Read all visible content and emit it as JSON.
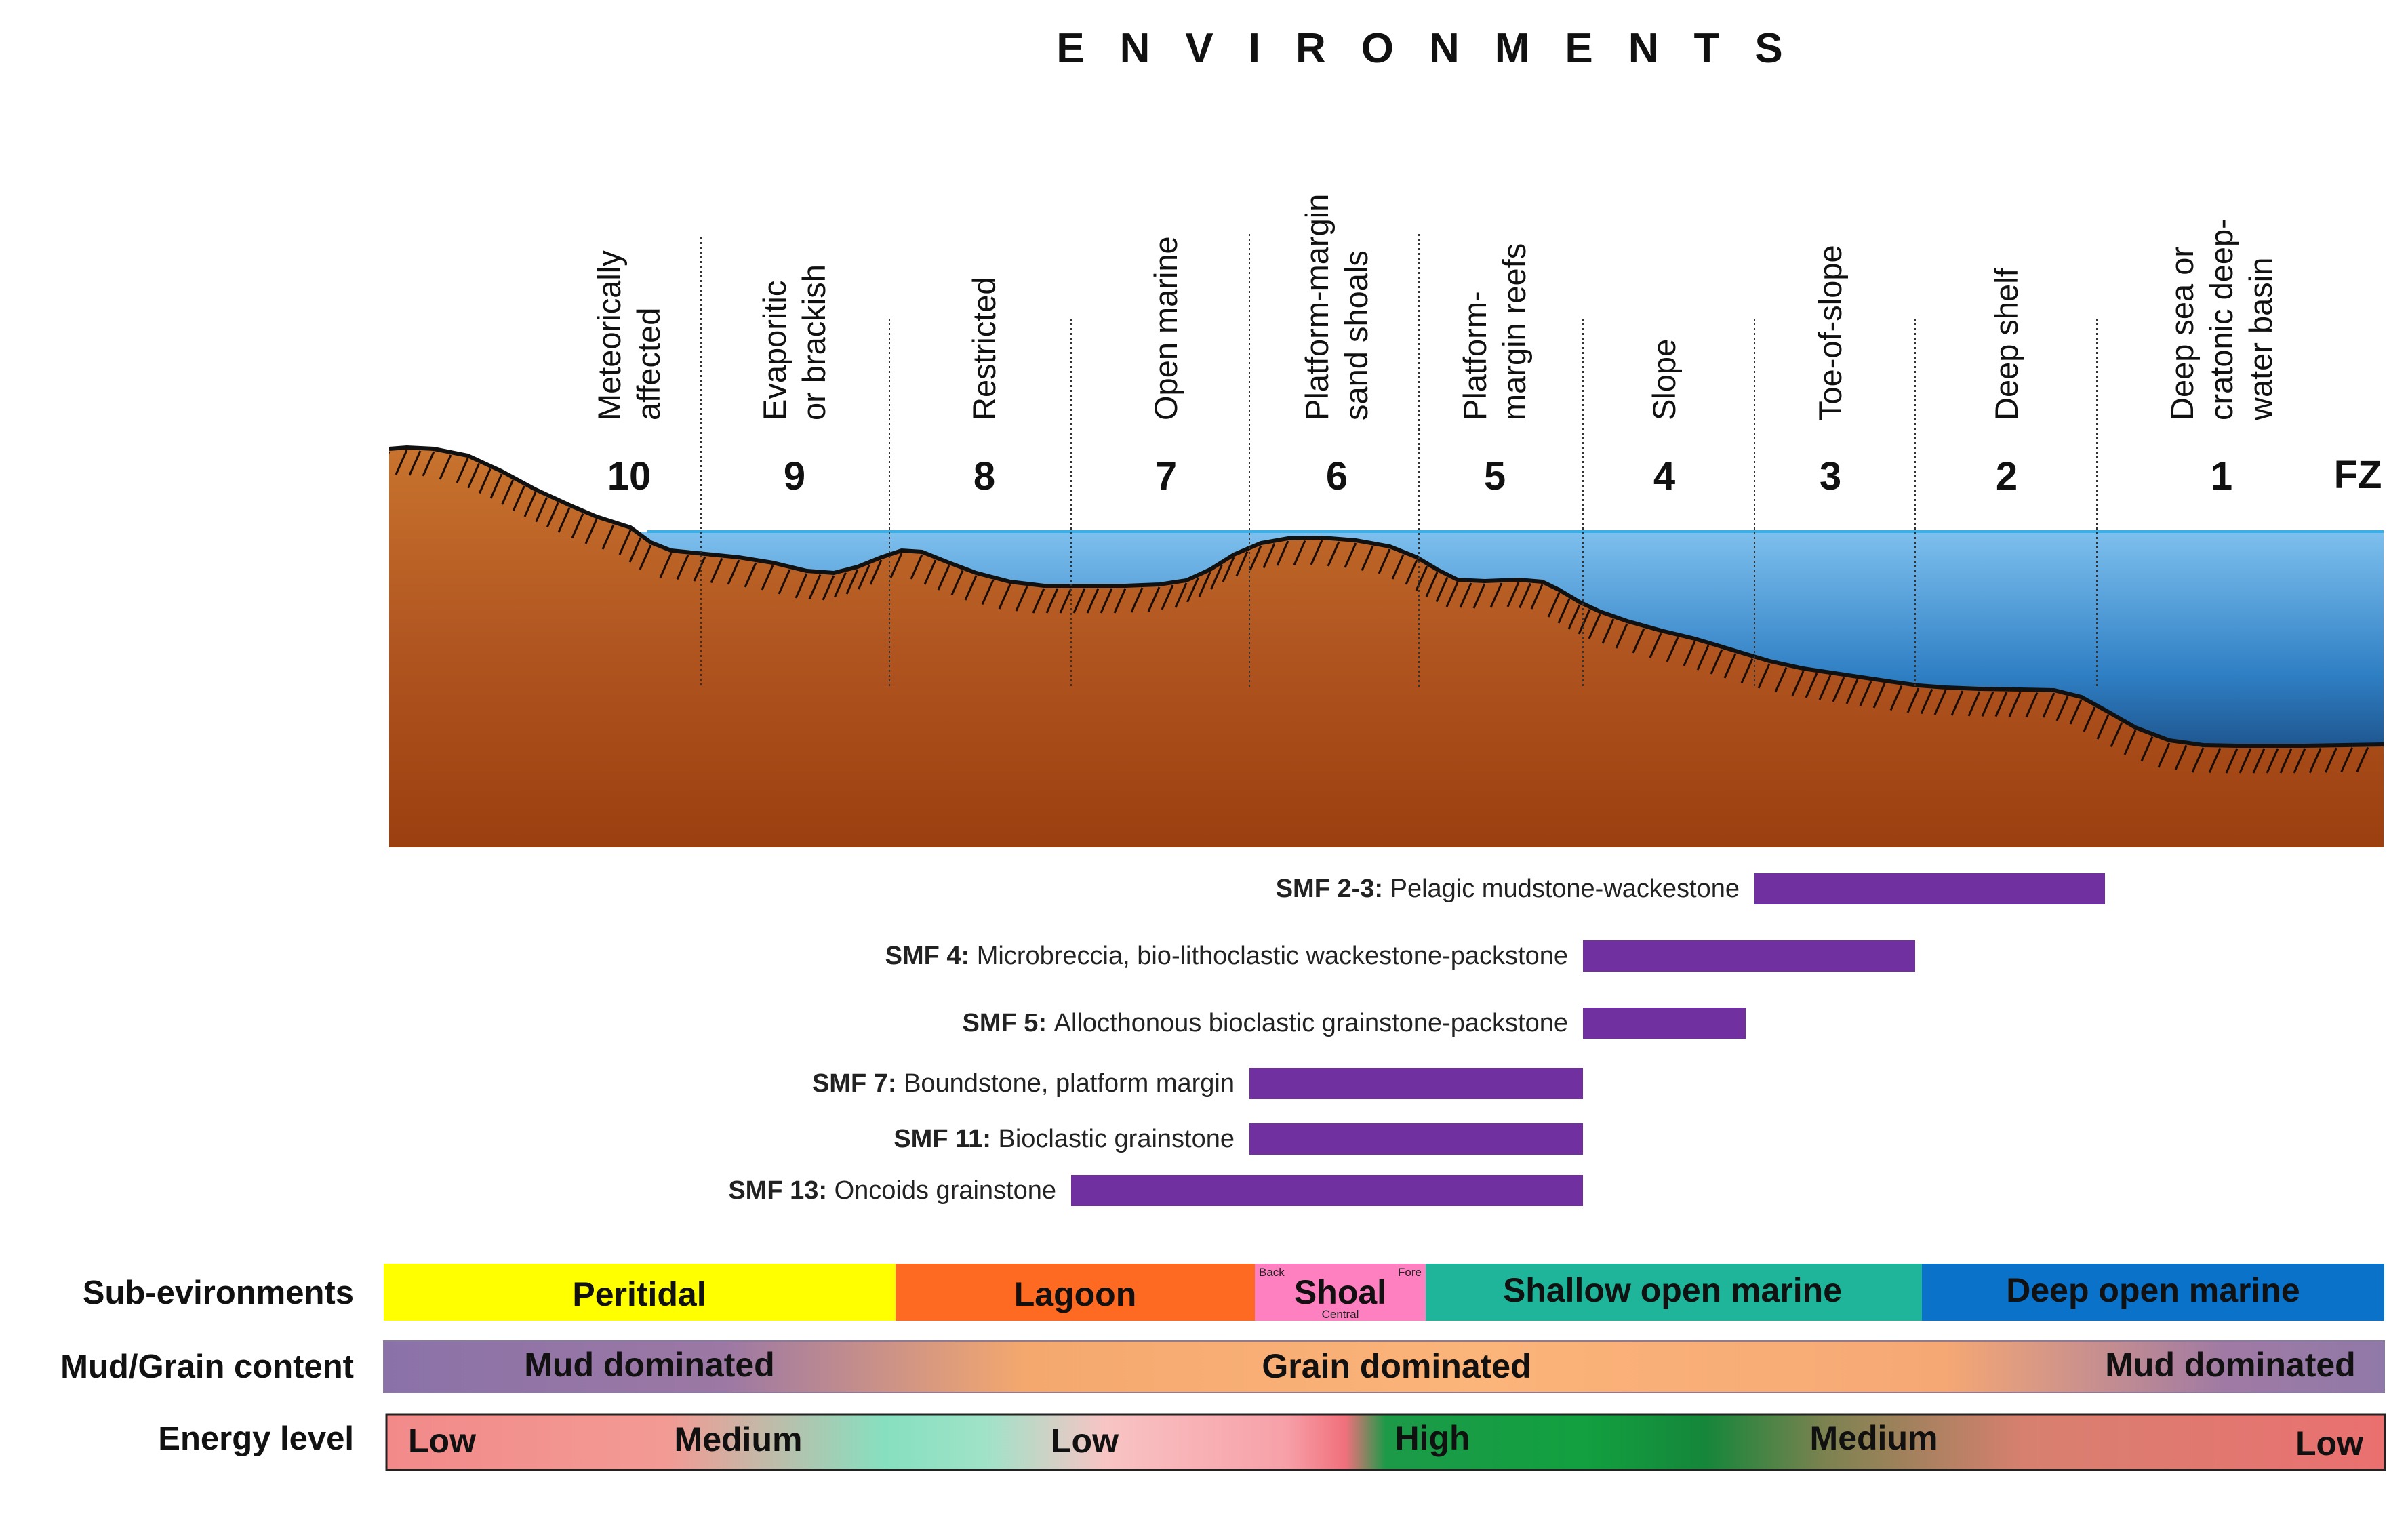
{
  "title": "ENVIRONMENTS",
  "environments": [
    {
      "fz": "10",
      "name": [
        "Meteorically",
        "affected"
      ]
    },
    {
      "fz": "9",
      "name": [
        "Evaporitic",
        "or brackish"
      ]
    },
    {
      "fz": "8",
      "name": [
        "Restricted"
      ]
    },
    {
      "fz": "7",
      "name": [
        "Open marine"
      ]
    },
    {
      "fz": "6",
      "name": [
        "Platform-margin",
        "sand shoals"
      ]
    },
    {
      "fz": "5",
      "name": [
        "Platform-",
        "margin reefs"
      ]
    },
    {
      "fz": "4",
      "name": [
        "Slope"
      ]
    },
    {
      "fz": "3",
      "name": [
        "Toe-of-slope"
      ]
    },
    {
      "fz": "2",
      "name": [
        "Deep shelf"
      ]
    },
    {
      "fz": "1",
      "name": [
        "Deep sea or",
        "cratonic deep-",
        "water basin"
      ]
    }
  ],
  "fz_label": "FZ",
  "smf": [
    {
      "code": "SMF 2-3:",
      "desc": "Pelagic mudstone-wackestone",
      "from": "3",
      "to": "2"
    },
    {
      "code": "SMF 4:",
      "desc": "Microbreccia, bio-lithoclastic  wackestone-packstone",
      "from": "4",
      "to": "3"
    },
    {
      "code": "SMF 5:",
      "desc": "Allocthonous bioclastic grainstone-packstone",
      "from": "4",
      "to": "4"
    },
    {
      "code": "SMF 7:",
      "desc": "Boundstone, platform margin",
      "from": "6",
      "to": "5"
    },
    {
      "code": "SMF 11:",
      "desc": "Bioclastic grainstone",
      "from": "6",
      "to": "5"
    },
    {
      "code": "SMF 13:",
      "desc": "Oncoids grainstone",
      "from": "7",
      "to": "5"
    }
  ],
  "rows": {
    "sub_environments": {
      "label": "Sub-evironments",
      "bands": [
        "Peritidal",
        "Lagoon",
        "Shoal",
        "Shallow open marine",
        "Deep open marine"
      ],
      "shoal_small": {
        "back": "Back",
        "fore": "Fore",
        "central": "Central"
      }
    },
    "mud_grain": {
      "label": "Mud/Grain content",
      "values": [
        "Mud dominated",
        "Grain dominated",
        "Mud dominated"
      ]
    },
    "energy": {
      "label": "Energy level",
      "values": [
        "Low",
        "Medium",
        "Low",
        "High",
        "Medium",
        "Low"
      ]
    }
  },
  "colors": {
    "sediment": "#a8501d",
    "sea_shallow": "#6fb3e4",
    "sea_deep": "#0a2a5c",
    "smf_bar": "#7030a0",
    "peritidal": "#ffff00",
    "lagoon": "#ff6a22",
    "shoal": "#ff80c0",
    "shallow_open_marine": "#1fb59a",
    "deep_open_marine": "#0a72c9"
  }
}
